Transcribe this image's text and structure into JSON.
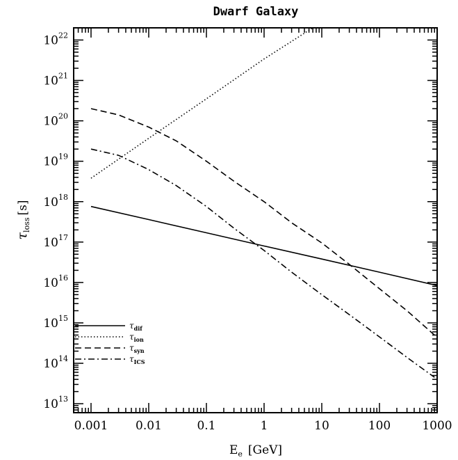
{
  "chart_data": {
    "type": "line",
    "title": "Dwarf Galaxy",
    "xlabel": {
      "symbol": "E",
      "sub": "e",
      "unit": "[GeV]"
    },
    "ylabel": {
      "symbol": "τ",
      "sub": "loss",
      "unit": "[s]"
    },
    "xscale": "log",
    "yscale": "log",
    "xlim": [
      0.0005,
      1000
    ],
    "ylim": [
      6000000000000.0,
      2e+22
    ],
    "x_ticks": [
      {
        "value": 0.001,
        "label": "0.001"
      },
      {
        "value": 0.01,
        "label": "0.01"
      },
      {
        "value": 0.1,
        "label": "0.1"
      },
      {
        "value": 1,
        "label": "1"
      },
      {
        "value": 10,
        "label": "10"
      },
      {
        "value": 100,
        "label": "100"
      },
      {
        "value": 1000,
        "label": "1000"
      }
    ],
    "y_ticks": [
      {
        "value": 10000000000000.0,
        "base": "10",
        "exp": "13"
      },
      {
        "value": 100000000000000.0,
        "base": "10",
        "exp": "14"
      },
      {
        "value": 1000000000000000.0,
        "base": "10",
        "exp": "15"
      },
      {
        "value": 1e+16,
        "base": "10",
        "exp": "16"
      },
      {
        "value": 1e+17,
        "base": "10",
        "exp": "17"
      },
      {
        "value": 1e+18,
        "base": "10",
        "exp": "18"
      },
      {
        "value": 1e+19,
        "base": "10",
        "exp": "19"
      },
      {
        "value": 1e+20,
        "base": "10",
        "exp": "20"
      },
      {
        "value": 1e+21,
        "base": "10",
        "exp": "21"
      },
      {
        "value": 1e+22,
        "base": "10",
        "exp": "22"
      }
    ],
    "grid": false,
    "legend_position": "bottom-left",
    "series": [
      {
        "name": "τ_dif",
        "label_symbol": "τ",
        "label_sub": "dif",
        "dash": "solid",
        "x": [
          0.001,
          0.01,
          0.1,
          1,
          10,
          100,
          1000
        ],
        "y": [
          7.6e+17,
          3.6e+17,
          1.7e+17,
          8e+16,
          3.8e+16,
          1.8e+16,
          8400000000000000.0
        ]
      },
      {
        "name": "τ_ion",
        "label_symbol": "τ",
        "label_sub": "ion",
        "dash": "dotted",
        "x": [
          0.001,
          0.01,
          0.1,
          1,
          7
        ],
        "y": [
          3.8e+18,
          3.7e+19,
          3.5e+20,
          3.4e+21,
          2e+22
        ]
      },
      {
        "name": "τ_syn",
        "label_symbol": "τ",
        "label_sub": "syn",
        "dash": "dashed",
        "x": [
          0.001,
          0.003,
          0.01,
          0.03,
          0.1,
          0.3,
          1,
          3,
          10,
          30,
          100,
          300,
          900
        ],
        "y": [
          2e+20,
          1.4e+20,
          7e+19,
          3.2e+19,
          1e+19,
          3.2e+18,
          1e+18,
          3e+17,
          9.5e+16,
          2.8e+16,
          7000000000000000.0,
          2000000000000000.0,
          500000000000000.0
        ]
      },
      {
        "name": "τ_ICS",
        "label_symbol": "τ",
        "label_sub": "ICS",
        "dash": "dashdot",
        "x": [
          0.001,
          0.003,
          0.01,
          0.03,
          0.1,
          0.3,
          1,
          3,
          10,
          30,
          100,
          300,
          900
        ],
        "y": [
          2e+19,
          1.4e+19,
          6.2e+18,
          2.5e+18,
          7.6e+17,
          2.2e+17,
          6.2e+16,
          1.8e+16,
          5000000000000000.0,
          1600000000000000.0,
          450000000000000.0,
          140000000000000.0,
          45000000000000.0
        ]
      }
    ]
  }
}
